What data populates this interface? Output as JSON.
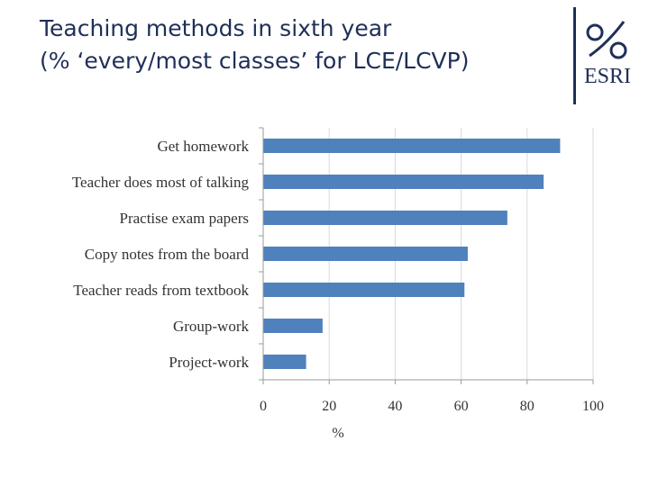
{
  "title": {
    "line1": "Teaching methods in sixth year",
    "line2": "(% ‘every/most classes’ for LCE/LCVP)"
  },
  "logo": {
    "text": "ESRI",
    "icon": "percent-mark-icon"
  },
  "colors": {
    "bar": "#4f81bd",
    "title": "#1f2f57",
    "grid": "#d9d9d9"
  },
  "chart_data": {
    "type": "bar",
    "orientation": "horizontal",
    "categories": [
      "Get homework",
      "Teacher does most of talking",
      "Practise exam papers",
      "Copy notes from the board",
      "Teacher reads from textbook",
      "Group-work",
      "Project-work"
    ],
    "values": [
      90,
      85,
      74,
      62,
      61,
      18,
      13
    ],
    "xlabel": "%",
    "ylabel": "",
    "xlim": [
      0,
      100
    ],
    "xticks": [
      "0",
      "20",
      "40",
      "60",
      "80",
      "100"
    ],
    "grid": true,
    "legend": "none"
  }
}
